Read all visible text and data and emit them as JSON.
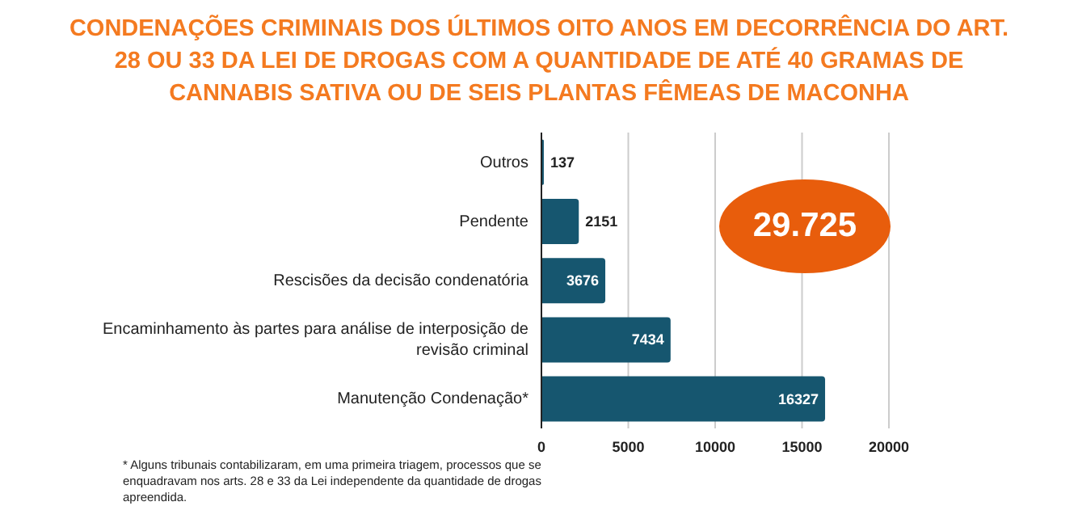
{
  "chart_data": {
    "type": "bar",
    "orientation": "horizontal",
    "title": "CONDENAÇÕES CRIMINAIS DOS ÚLTIMOS OITO ANOS EM DECORRÊNCIA DO ART. 28 OU 33 DA LEI DE DROGAS COM A QUANTIDADE DE ATÉ 40 GRAMAS DE CANNABIS SATIVA OU DE SEIS PLANTAS FÊMEAS DE MACONHA",
    "categories": [
      "Outros",
      "Pendente",
      "Rescisões da decisão condenatória",
      "Encaminhamento às partes para análise de interposição de revisão criminal",
      "Manutenção Condenação*"
    ],
    "values": [
      137,
      2151,
      3676,
      7434,
      16327
    ],
    "color": "#16566f",
    "xlim": [
      0,
      20000
    ],
    "xticks": [
      0,
      5000,
      10000,
      15000,
      20000
    ],
    "grid": "x",
    "data_labels": true,
    "annotations": [
      "29.725",
      "* Alguns tribunais contabilizaram, em uma primeira triagem, processos que se enquadravam nos arts. 28 e 33 da Lei independente da quantidade de drogas apreendida."
    ]
  }
}
